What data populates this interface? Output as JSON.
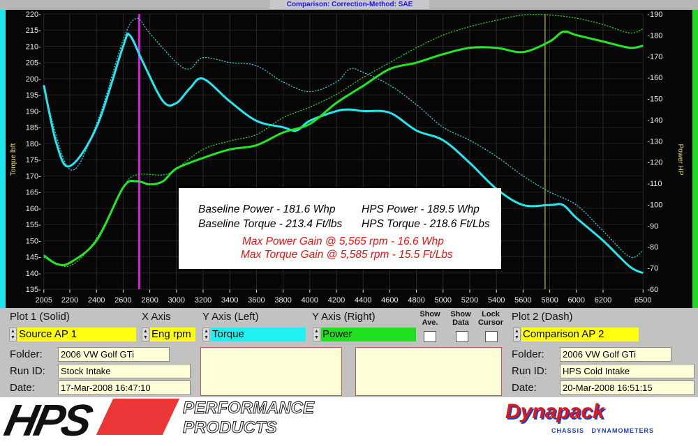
{
  "header": {
    "title": "Comparison:      Correction-Method: SAE"
  },
  "annotation": {
    "baseline_power": "Baseline Power - 181.6 Whp",
    "baseline_torque": "Baseline Torque - 213.4 Ft/lbs",
    "hps_power": "HPS Power - 189.5 Whp",
    "hps_torque": "HPS Torque - 218.6 Ft/Lbs",
    "max_power_gain": "Max Power Gain @ 5,565 rpm - 16.6 Whp",
    "max_torque_gain": "Max Torque Gain @ 5,585 rpm - 15.5 Ft/Lbs"
  },
  "chart_data": {
    "type": "line",
    "ylabel": "Torque lbft",
    "y2label": "Power HP",
    "xlim": [
      2005,
      6500
    ],
    "ylim": [
      135,
      220
    ],
    "y2lim": [
      60,
      190
    ],
    "x_ticks": [
      2005,
      2200,
      2400,
      2600,
      2800,
      3000,
      3200,
      3400,
      3600,
      3800,
      4000,
      4200,
      4400,
      4600,
      4800,
      5000,
      5200,
      5400,
      5600,
      5800,
      6000,
      6200,
      6500
    ],
    "y_ticks": [
      135,
      140,
      145,
      150,
      155,
      160,
      165,
      170,
      175,
      180,
      185,
      190,
      195,
      200,
      205,
      210,
      215,
      220
    ],
    "y2_ticks": [
      60,
      70,
      80,
      90,
      100,
      110,
      120,
      130,
      140,
      150,
      160,
      170,
      180,
      190
    ],
    "grid": true,
    "markers": {
      "magenta_line_rpm": 2720,
      "cursor_rpm": 5765
    },
    "colors": {
      "torque": "#22e8f0",
      "power": "#22e822",
      "marker": "#e020e0",
      "cursor": "#e8e060"
    },
    "series": [
      {
        "axis": "left",
        "style": "solid",
        "color": "#22e8f0",
        "x": [
          2005,
          2100,
          2200,
          2400,
          2600,
          2650,
          2750,
          2900,
          3000,
          3100,
          3200,
          3400,
          3600,
          3800,
          3900,
          4000,
          4200,
          4300,
          4400,
          4600,
          4800,
          5000,
          5200,
          5400,
          5600,
          5800,
          5900,
          6000,
          6200,
          6400,
          6500
        ],
        "y": [
          198,
          180,
          173,
          185,
          210,
          213.4,
          205,
          193,
          192.5,
          197,
          200,
          193,
          187,
          185,
          184,
          187,
          190,
          190.5,
          190,
          189.5,
          184,
          181,
          174,
          166,
          161,
          161,
          161,
          157,
          150,
          142,
          140
        ]
      },
      {
        "axis": "left",
        "style": "dash",
        "color": "#22e8f0",
        "x": [
          2005,
          2200,
          2400,
          2600,
          2700,
          2800,
          3000,
          3100,
          3200,
          3400,
          3600,
          3800,
          4000,
          4200,
          4300,
          4400,
          4600,
          4800,
          5000,
          5200,
          5400,
          5600,
          5800,
          6000,
          6200,
          6400,
          6500
        ],
        "y": [
          197,
          172,
          186,
          212,
          218.6,
          214,
          205,
          203,
          206.5,
          205,
          204,
          199,
          196,
          199,
          203,
          202,
          198,
          192,
          185,
          181,
          176,
          170,
          165,
          161,
          153,
          145,
          147
        ]
      },
      {
        "axis": "right",
        "style": "solid",
        "color": "#22e822",
        "x": [
          2005,
          2100,
          2200,
          2400,
          2600,
          2700,
          2800,
          2900,
          3000,
          3200,
          3400,
          3600,
          3800,
          4000,
          4200,
          4400,
          4600,
          4800,
          5000,
          5200,
          5400,
          5600,
          5800,
          5900,
          6000,
          6200,
          6400,
          6500
        ],
        "y": [
          76,
          72,
          72.5,
          83,
          108,
          111,
          109.5,
          111,
          117,
          122,
          126,
          128,
          134,
          138,
          148,
          156,
          164,
          167,
          171,
          174,
          174,
          172,
          177,
          181.6,
          180,
          177,
          174,
          175
        ]
      },
      {
        "axis": "right",
        "style": "dash",
        "color": "#22e822",
        "x": [
          2005,
          2200,
          2400,
          2600,
          2700,
          2900,
          3000,
          3200,
          3400,
          3600,
          3800,
          4000,
          4200,
          4400,
          4600,
          4800,
          5000,
          5200,
          5400,
          5600,
          5800,
          6000,
          6200,
          6400,
          6500
        ],
        "y": [
          75,
          71,
          84,
          108,
          114,
          114,
          117,
          126,
          130,
          133,
          141,
          146,
          152,
          160,
          167,
          174,
          180,
          184,
          187,
          189.5,
          189.5,
          188,
          185,
          181,
          183
        ]
      }
    ]
  },
  "panel": {
    "plot1_label": "Plot 1 (Solid)",
    "xaxis_label": "X Axis",
    "yleft_label": "Y Axis (Left)",
    "yright_label": "Y Axis (Right)",
    "show_ave": "Show Ave.",
    "show_data": "Show Data",
    "lock_cursor": "Lock Cursor",
    "plot2_label": "Plot 2 (Dash)",
    "plot1_value": "Source AP 1",
    "xaxis_value": "Eng rpm",
    "yleft_value": "Torque",
    "yright_value": "Power",
    "plot2_value": "Comparison AP 2",
    "folder_label": "Folder:",
    "runid_label": "Run ID:",
    "date_label": "Date:",
    "left": {
      "folder": "2006 VW Golf GTi",
      "runid": "Stock Intake",
      "date": "17-Mar-2008  16:47:10"
    },
    "right": {
      "folder": "2006 VW Golf GTi",
      "runid": "HPS Cold Intake",
      "date": "20-Mar-2008  16:51:15"
    }
  },
  "logos": {
    "hps": "HPS",
    "hps_sub1": "PERFORMANCE",
    "hps_sub2": "PRODUCTS",
    "dynapack": "Dynapack",
    "dynapack_sub": "CHASSIS   DYNAMOMETERS"
  }
}
